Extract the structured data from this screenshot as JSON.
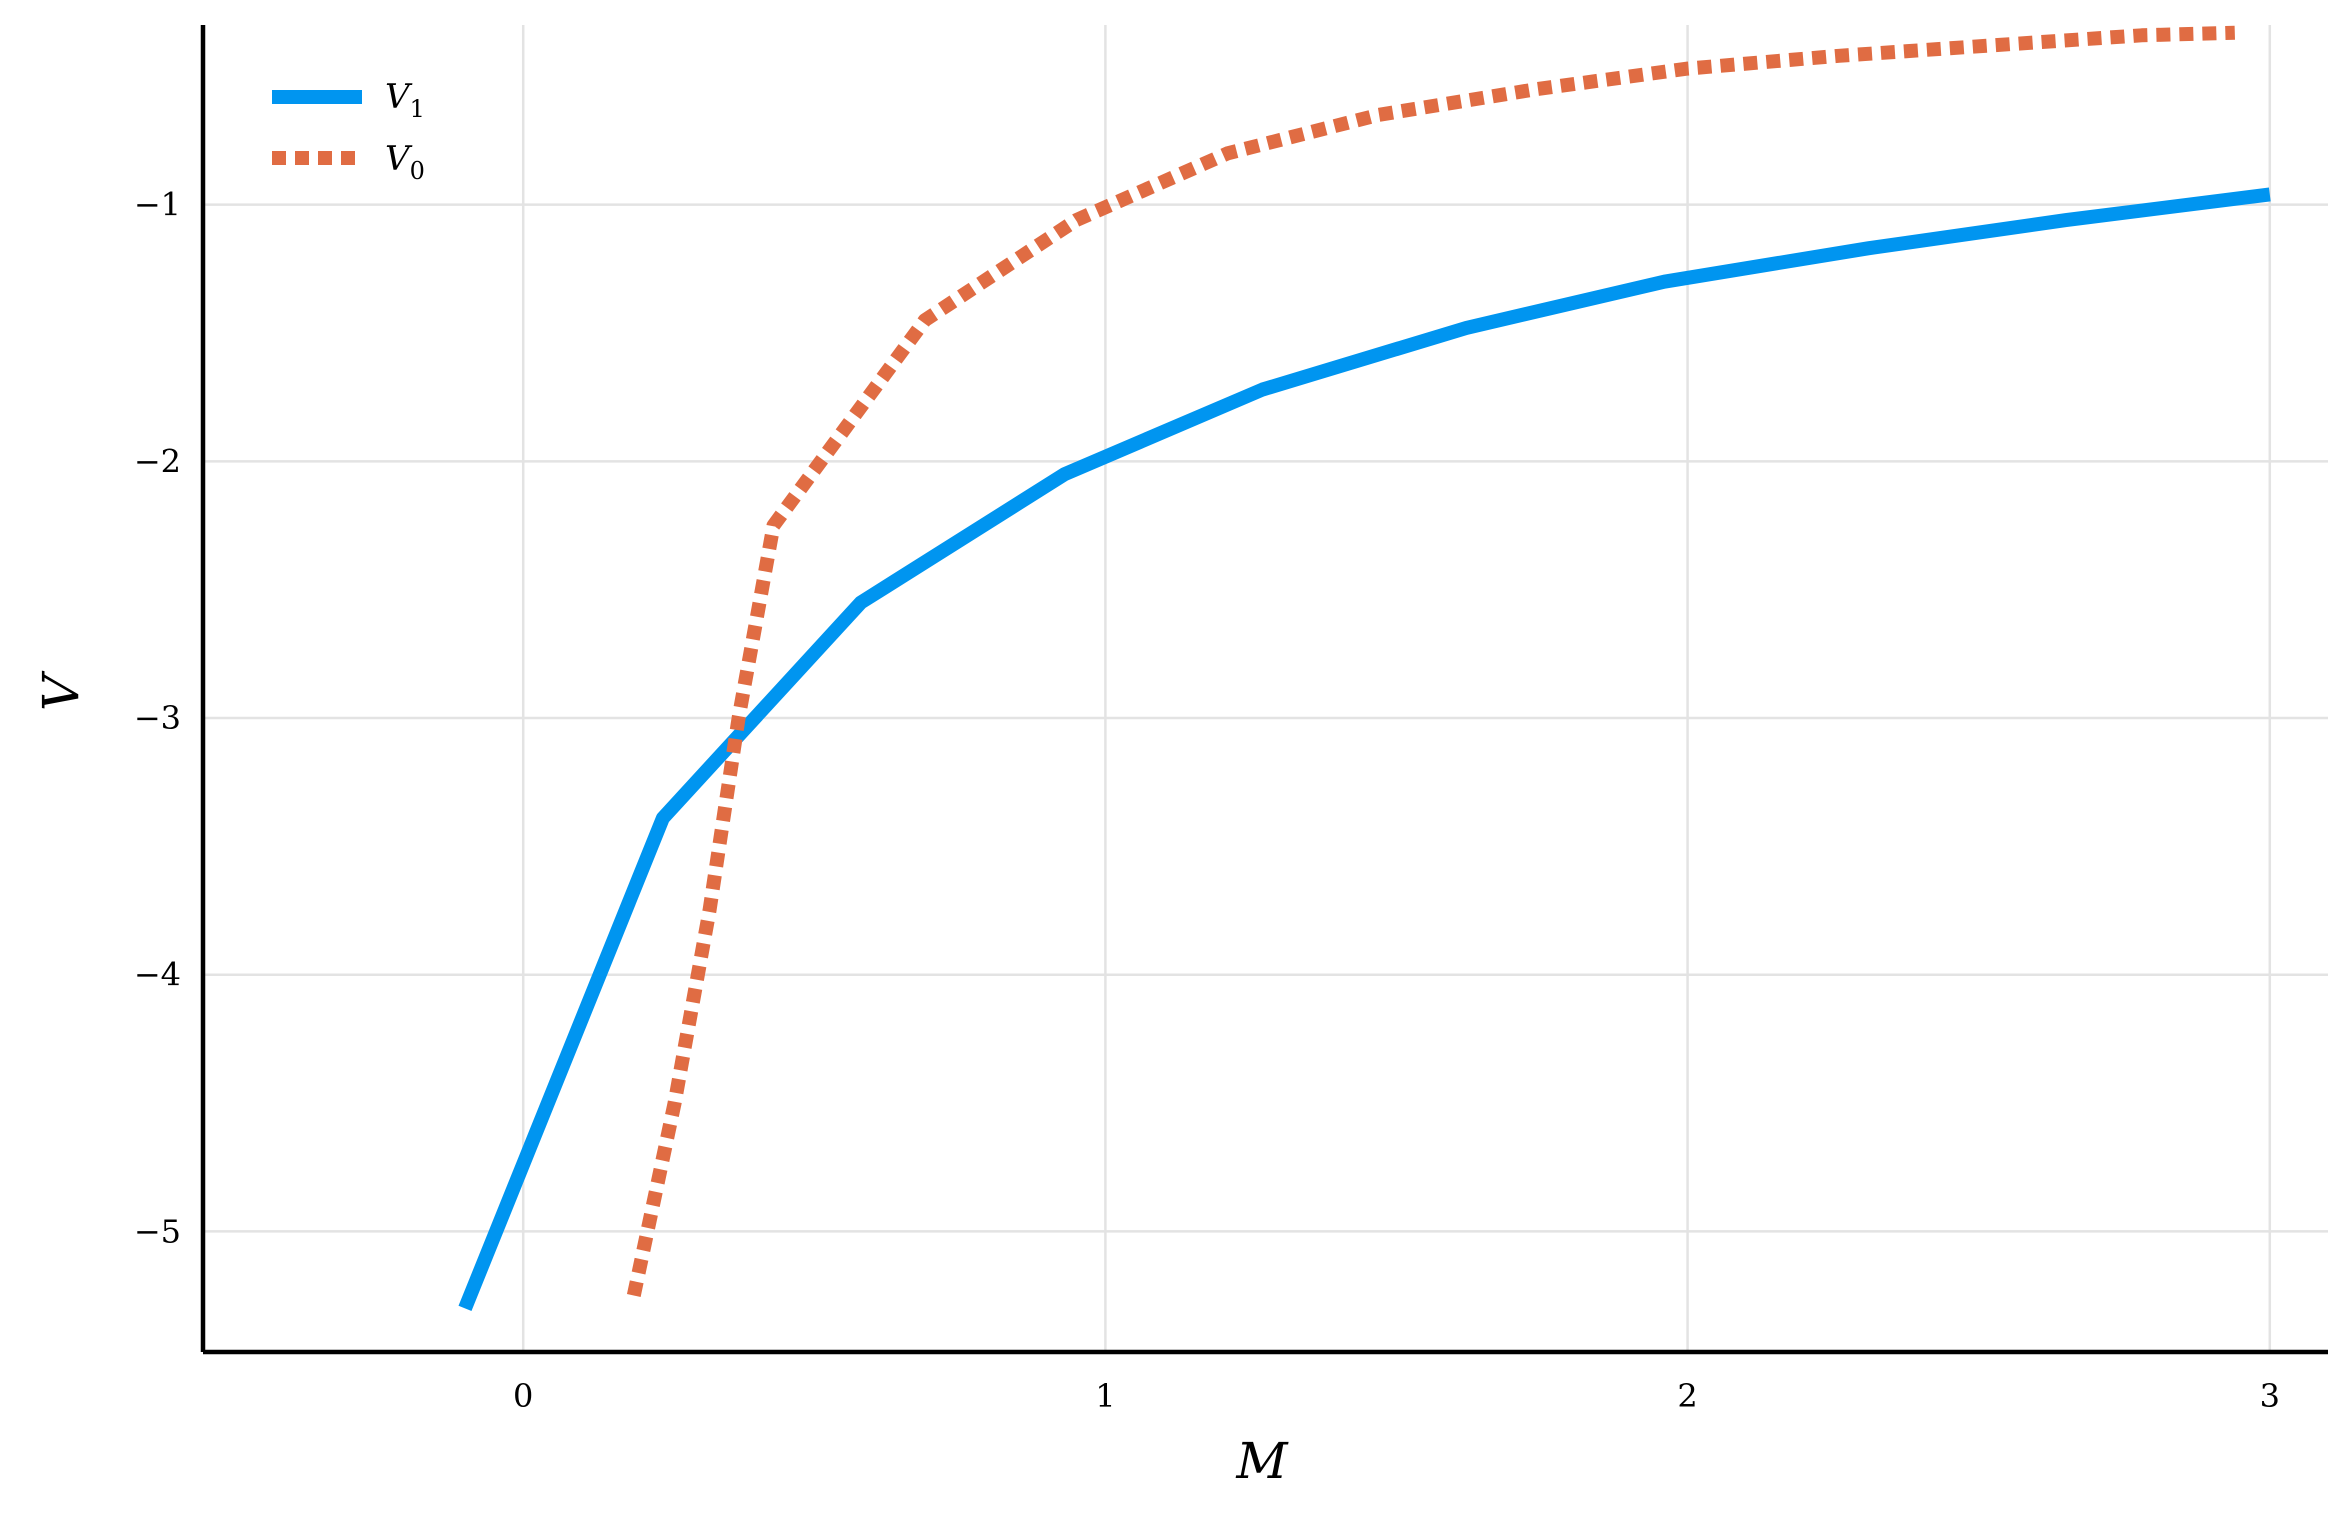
{
  "chart_data": {
    "type": "line",
    "title": "",
    "xlabel": "M",
    "ylabel": "V",
    "xlim": [
      -0.55,
      3.1
    ],
    "ylim": [
      -5.47,
      -0.3
    ],
    "x_ticks": [
      0,
      1,
      2,
      3
    ],
    "x_tick_labels": [
      "0",
      "1",
      "2",
      "3"
    ],
    "y_ticks": [
      -1,
      -2,
      -3,
      -4,
      -5
    ],
    "y_tick_labels": [
      "−1",
      "−2",
      "−3",
      "−4",
      "−5"
    ],
    "grid": true,
    "legend_position": "top-left",
    "colors": {
      "V1": "#0095f0",
      "V0": "#e06c43",
      "axis": "#000000",
      "grid": "#e3e3e3"
    },
    "series": [
      {
        "name": "V1",
        "name_main": "V",
        "name_sub": "1",
        "style": "solid",
        "color": "#0095f0",
        "points": [
          [
            -0.1,
            -5.3
          ],
          [
            0.24,
            -3.39
          ],
          [
            0.58,
            -2.55
          ],
          [
            0.93,
            -2.05
          ],
          [
            1.27,
            -1.72
          ],
          [
            1.62,
            -1.48
          ],
          [
            1.96,
            -1.3
          ],
          [
            2.31,
            -1.17
          ],
          [
            2.65,
            -1.06
          ],
          [
            3.0,
            -0.96
          ]
        ]
      },
      {
        "name": "V0",
        "name_main": "V",
        "name_sub": "0",
        "style": "dotted",
        "color": "#e06c43",
        "points": [
          [
            0.19,
            -5.25
          ],
          [
            0.26,
            -4.5
          ],
          [
            0.32,
            -3.75
          ],
          [
            0.37,
            -3.0
          ],
          [
            0.43,
            -2.25
          ],
          [
            0.69,
            -1.45
          ],
          [
            0.95,
            -1.06
          ],
          [
            1.21,
            -0.8
          ],
          [
            1.47,
            -0.65
          ],
          [
            1.74,
            -0.55
          ],
          [
            2.0,
            -0.47
          ],
          [
            2.26,
            -0.42
          ],
          [
            2.52,
            -0.38
          ],
          [
            2.78,
            -0.34
          ],
          [
            2.94,
            -0.33
          ]
        ]
      }
    ]
  }
}
